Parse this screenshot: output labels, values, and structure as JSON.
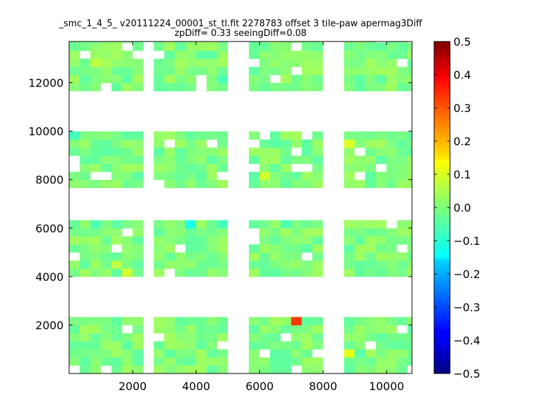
{
  "chart_data": {
    "type": "heatmap",
    "title_lines": [
      "_smc_1_4_5_ v20111224_00001_st_tl.fit 2278783 offset 3 tile-paw apermag3Diff",
      "zpDiff= 0.33 seeingDiff=0.08"
    ],
    "xlabel": "",
    "ylabel": "",
    "xlim": [
      0,
      10800
    ],
    "ylim": [
      0,
      13700
    ],
    "xticks": [
      2000,
      4000,
      6000,
      8000,
      10000
    ],
    "xtick_labels": [
      "2000",
      "4000",
      "6000",
      "8000",
      "10000"
    ],
    "yticks": [
      2000,
      4000,
      6000,
      8000,
      10000,
      12000
    ],
    "ytick_labels": [
      "2000",
      "4000",
      "6000",
      "8000",
      "10000",
      "12000"
    ],
    "grid": false,
    "colormap": "jet",
    "vmin": -0.5,
    "vmax": 0.5,
    "colorbar_ticks": [
      0.5,
      0.4,
      0.3,
      0.2,
      0.1,
      0.0,
      -0.1,
      -0.2,
      -0.3,
      -0.4,
      -0.5
    ],
    "colorbar_tick_labels": [
      "0.5",
      "0.4",
      "0.3",
      "0.2",
      "0.1",
      "0.0",
      "−0.1",
      "−0.2",
      "−0.3",
      "−0.4",
      "−0.5"
    ],
    "cell_size": 333,
    "cell_x_start": 0,
    "cell_y_start": 0,
    "base_value": 0.0,
    "detector_blocks": [
      {
        "x": [
          0,
          2000
        ],
        "y": [
          0,
          2100
        ]
      },
      {
        "x": [
          2700,
          4900
        ],
        "y": [
          0,
          2100
        ]
      },
      {
        "x": [
          5700,
          7900
        ],
        "y": [
          0,
          2100
        ]
      },
      {
        "x": [
          8700,
          10800
        ],
        "y": [
          0,
          2100
        ]
      },
      {
        "x": [
          0,
          2000
        ],
        "y": [
          4000,
          6100
        ]
      },
      {
        "x": [
          2700,
          4900
        ],
        "y": [
          4000,
          6100
        ]
      },
      {
        "x": [
          5700,
          7900
        ],
        "y": [
          4000,
          6100
        ]
      },
      {
        "x": [
          8700,
          10800
        ],
        "y": [
          4000,
          6100
        ]
      },
      {
        "x": [
          0,
          2000
        ],
        "y": [
          7800,
          9900
        ]
      },
      {
        "x": [
          2700,
          4900
        ],
        "y": [
          7800,
          9900
        ]
      },
      {
        "x": [
          5700,
          7900
        ],
        "y": [
          7800,
          9900
        ]
      },
      {
        "x": [
          8700,
          10800
        ],
        "y": [
          7800,
          9900
        ]
      },
      {
        "x": [
          0,
          2000
        ],
        "y": [
          11700,
          13700
        ]
      },
      {
        "x": [
          2700,
          4900
        ],
        "y": [
          11700,
          13700
        ]
      },
      {
        "x": [
          5700,
          7900
        ],
        "y": [
          11700,
          13700
        ]
      },
      {
        "x": [
          8700,
          10800
        ],
        "y": [
          11700,
          13700
        ]
      }
    ],
    "notable_cells": [
      {
        "x": 6900,
        "y": 1900,
        "value": 0.32
      },
      {
        "x": 8000,
        "y": 600,
        "value": 0.1
      },
      {
        "x": 8600,
        "y": 600,
        "value": 0.1
      },
      {
        "x": 1800,
        "y": 4100,
        "value": 0.08
      },
      {
        "x": 1200,
        "y": 4400,
        "value": 0.06
      },
      {
        "x": 6100,
        "y": 7900,
        "value": 0.08
      },
      {
        "x": 8600,
        "y": 9200,
        "value": 0.09
      },
      {
        "x": 600,
        "y": 12600,
        "value": 0.06
      },
      {
        "x": 4900,
        "y": 9800,
        "value": -0.2
      },
      {
        "x": 7300,
        "y": 3700,
        "value": -0.12
      },
      {
        "x": 9700,
        "y": 3700,
        "value": -0.1
      },
      {
        "x": 3600,
        "y": 5900,
        "value": -0.1
      },
      {
        "x": 4500,
        "y": 5900,
        "value": -0.06
      },
      {
        "x": 6600,
        "y": 5900,
        "value": -0.05
      },
      {
        "x": 2200,
        "y": 12300,
        "value": -0.06
      },
      {
        "x": 4800,
        "y": 12000,
        "value": -0.05
      },
      {
        "x": 100,
        "y": 9700,
        "value": -0.06
      },
      {
        "x": 700,
        "y": 5900,
        "value": -0.05
      },
      {
        "x": 9000,
        "y": 600,
        "value": -0.04
      },
      {
        "x": 9700,
        "y": 12000,
        "value": -0.03
      }
    ]
  }
}
